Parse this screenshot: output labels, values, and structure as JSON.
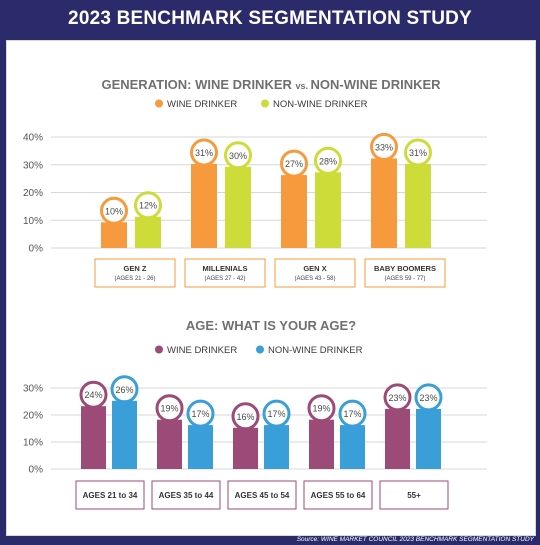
{
  "header": {
    "title": "2023 BENCHMARK SEGMENTATION STUDY"
  },
  "footer": {
    "source": "Source: WINE MARKET COUNCIL 2023 BENCHMARK SEGMENTATION STUDY"
  },
  "chart_data": [
    {
      "type": "bar",
      "title": "GENERATION: WINE DRINKER",
      "title_vs": "vs.",
      "title_rest": "NON-WINE DRINKER",
      "categories": [
        "GEN Z",
        "MILLENIALS",
        "GEN X",
        "BABY BOOMERS"
      ],
      "category_sublabels": [
        "(AGES 21 - 26)",
        "(AGES 27 - 42)",
        "(AGES 43 - 58)",
        "(AGES 59 - 77)"
      ],
      "series": [
        {
          "name": "WINE DRINKER",
          "values": [
            10,
            31,
            27,
            33
          ],
          "color": "#f79a3e"
        },
        {
          "name": "NON-WINE DRINKER",
          "values": [
            12,
            30,
            28,
            31
          ],
          "color": "#cddc39"
        }
      ],
      "value_labels": [
        [
          "10%",
          "31%",
          "27%",
          "33%"
        ],
        [
          "12%",
          "30%",
          "28%",
          "31%"
        ]
      ],
      "y_ticks": [
        "0%",
        "10%",
        "20%",
        "30%",
        "40%"
      ],
      "ylim": [
        0,
        40
      ],
      "legend": "top-center",
      "grid": true
    },
    {
      "type": "bar",
      "title": "AGE: WHAT IS YOUR AGE?",
      "categories": [
        "AGES 21 to 34",
        "AGES 35 to 44",
        "AGES 45 to 54",
        "AGES 55 to 64",
        "55+"
      ],
      "series": [
        {
          "name": "WINE DRINKER",
          "values": [
            24,
            19,
            16,
            19,
            23
          ],
          "color": "#9c4a78"
        },
        {
          "name": "NON-WINE DRINKER",
          "values": [
            26,
            17,
            17,
            17,
            23
          ],
          "color": "#3a9fd8"
        }
      ],
      "value_labels": [
        [
          "24%",
          "19%",
          "16%",
          "19%",
          "23%"
        ],
        [
          "26%",
          "17%",
          "17%",
          "17%",
          "23%"
        ]
      ],
      "y_ticks": [
        "0%",
        "10%",
        "20%",
        "30%"
      ],
      "ylim": [
        0,
        30
      ],
      "legend": "top-center",
      "grid": true
    }
  ]
}
